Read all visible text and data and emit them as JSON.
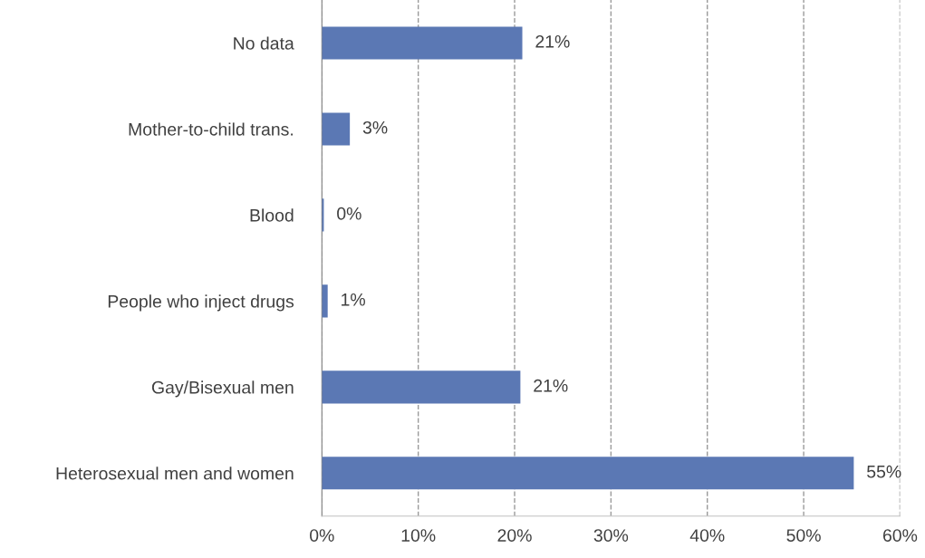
{
  "chart_data": {
    "type": "bar",
    "orientation": "horizontal",
    "categories": [
      "No data",
      "Mother-to-child trans.",
      "Blood",
      "People who inject drugs",
      "Gay/Bisexual men",
      "Heterosexual men and women"
    ],
    "values": [
      20.8,
      2.9,
      0.2,
      0.6,
      20.6,
      55.2
    ],
    "value_labels": [
      "21%",
      "3%",
      "0%",
      "1%",
      "21%",
      "55%"
    ],
    "color": "#5b78b4",
    "xlim": [
      0,
      60
    ],
    "xticks": [
      {
        "value": 0,
        "label": "0%"
      },
      {
        "value": 10,
        "label": "10%"
      },
      {
        "value": 20,
        "label": "20%"
      },
      {
        "value": 30,
        "label": "30%"
      },
      {
        "value": 40,
        "label": "40%"
      },
      {
        "value": 50,
        "label": "50%"
      },
      {
        "value": 60,
        "label": "60%"
      }
    ],
    "grid": "x",
    "line_style": "dashed",
    "legend": false
  }
}
